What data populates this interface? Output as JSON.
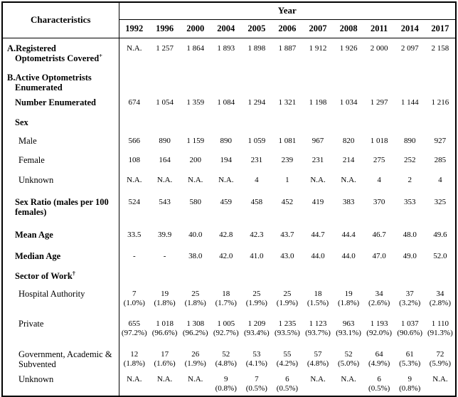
{
  "colors": {
    "background": "#ffffff",
    "text": "#000000",
    "border": "#000000"
  },
  "table": {
    "corner_header": "Characteristics",
    "year_header": "Year",
    "years": [
      "1992",
      "1996",
      "2000",
      "2004",
      "2005",
      "2006",
      "2007",
      "2008",
      "2011",
      "2014",
      "2017"
    ],
    "rows": [
      {
        "name": "registered-covered",
        "variant": "item",
        "bold": true,
        "lines": [
          "A.Registered",
          "Optometrists Covered"
        ],
        "sup": "+",
        "values": [
          "N.A.",
          "1 257",
          "1 864",
          "1 893",
          "1 898",
          "1 887",
          "1 912",
          "1 926",
          "2 000",
          "2 097",
          "2 158"
        ]
      },
      {
        "name": "active-enumerated",
        "variant": "item",
        "bold": true,
        "lines": [
          "B.Active Optometrists",
          "Enumerated"
        ],
        "values": []
      },
      {
        "name": "number-enumerated",
        "variant": "sub",
        "bold": true,
        "lines": [
          "Number Enumerated"
        ],
        "values": [
          "674",
          "1 054",
          "1 359",
          "1 084",
          "1 294",
          "1 321",
          "1 198",
          "1 034",
          "1 297",
          "1 144",
          "1 216"
        ]
      },
      {
        "name": "sex",
        "variant": "sub",
        "bold": true,
        "lines": [
          "Sex"
        ],
        "values": []
      },
      {
        "name": "male",
        "variant": "leaf",
        "bold": false,
        "lines": [
          "Male"
        ],
        "values": [
          "566",
          "890",
          "1 159",
          "890",
          "1 059",
          "1 081",
          "967",
          "820",
          "1 018",
          "890",
          "927"
        ]
      },
      {
        "name": "female",
        "variant": "leaf",
        "bold": false,
        "lines": [
          "Female"
        ],
        "values": [
          "108",
          "164",
          "200",
          "194",
          "231",
          "239",
          "231",
          "214",
          "275",
          "252",
          "285"
        ]
      },
      {
        "name": "sex-unknown",
        "variant": "leaf",
        "bold": false,
        "lines": [
          "Unknown"
        ],
        "values": [
          "N.A.",
          "N.A.",
          "N.A.",
          "N.A.",
          "4",
          "1",
          "N.A.",
          "N.A.",
          "4",
          "2",
          "4"
        ]
      },
      {
        "name": "sex-ratio",
        "variant": "sub",
        "bold": true,
        "lines": [
          "Sex Ratio (males per 100 females)"
        ],
        "values": [
          "524",
          "543",
          "580",
          "459",
          "458",
          "452",
          "419",
          "383",
          "370",
          "353",
          "325"
        ]
      },
      {
        "name": "mean-age",
        "variant": "sub",
        "bold": true,
        "lines": [
          "Mean Age"
        ],
        "values": [
          "33.5",
          "39.9",
          "40.0",
          "42.8",
          "42.3",
          "43.7",
          "44.7",
          "44.4",
          "46.7",
          "48.0",
          "49.6"
        ]
      },
      {
        "name": "median-age",
        "variant": "sub",
        "bold": true,
        "lines": [
          "Median Age"
        ],
        "values": [
          "-",
          "-",
          "38.0",
          "42.0",
          "41.0",
          "43.0",
          "44.0",
          "44.0",
          "47.0",
          "49.0",
          "52.0"
        ]
      },
      {
        "name": "sector-of-work",
        "variant": "sub",
        "bold": true,
        "lines": [
          "Sector of Work"
        ],
        "sup": "†",
        "values": []
      },
      {
        "name": "hospital-authority",
        "variant": "leaf",
        "bold": false,
        "lines": [
          "Hospital Authority"
        ],
        "values": [
          "7",
          "19",
          "25",
          "18",
          "25",
          "25",
          "18",
          "19",
          "34",
          "37",
          "34"
        ],
        "values2": [
          "(1.0%)",
          "(1.8%)",
          "(1.8%)",
          "(1.7%)",
          "(1.9%)",
          "(1.9%)",
          "(1.5%)",
          "(1.8%)",
          "(2.6%)",
          "(3.2%)",
          "(2.8%)"
        ]
      },
      {
        "name": "private",
        "variant": "leaf",
        "bold": false,
        "lines": [
          "Private"
        ],
        "values": [
          "655",
          "1 018",
          "1 308",
          "1 005",
          "1 209",
          "1 235",
          "1 123",
          "963",
          "1 193",
          "1 037",
          "1 110"
        ],
        "values2": [
          "(97.2%)",
          "(96.6%)",
          "(96.2%)",
          "(92.7%)",
          "(93.4%)",
          "(93.5%)",
          "(93.7%)",
          "(93.1%)",
          "(92.0%)",
          "(90.6%)",
          "(91.3%)"
        ]
      },
      {
        "name": "govt-academic-subvented",
        "variant": "leaf",
        "bold": false,
        "lines": [
          "Government, Academic & Subvented"
        ],
        "values": [
          "12",
          "17",
          "26",
          "52",
          "53",
          "55",
          "57",
          "52",
          "64",
          "61",
          "72"
        ],
        "values2": [
          "(1.8%)",
          "(1.6%)",
          "(1.9%)",
          "(4.8%)",
          "(4.1%)",
          "(4.2%)",
          "(4.8%)",
          "(5.0%)",
          "(4.9%)",
          "(5.3%)",
          "(5.9%)"
        ]
      },
      {
        "name": "sector-unknown",
        "variant": "leaf",
        "bold": false,
        "lines": [
          "Unknown"
        ],
        "values": [
          "N.A.",
          "N.A.",
          "N.A.",
          "9",
          "7",
          "6",
          "N.A.",
          "N.A.",
          "6",
          "9",
          "N.A."
        ],
        "values2": [
          "",
          "",
          "",
          "(0.8%)",
          "(0.5%)",
          "(0.5%)",
          "",
          "",
          "(0.5%)",
          "(0.8%)",
          ""
        ]
      }
    ]
  }
}
